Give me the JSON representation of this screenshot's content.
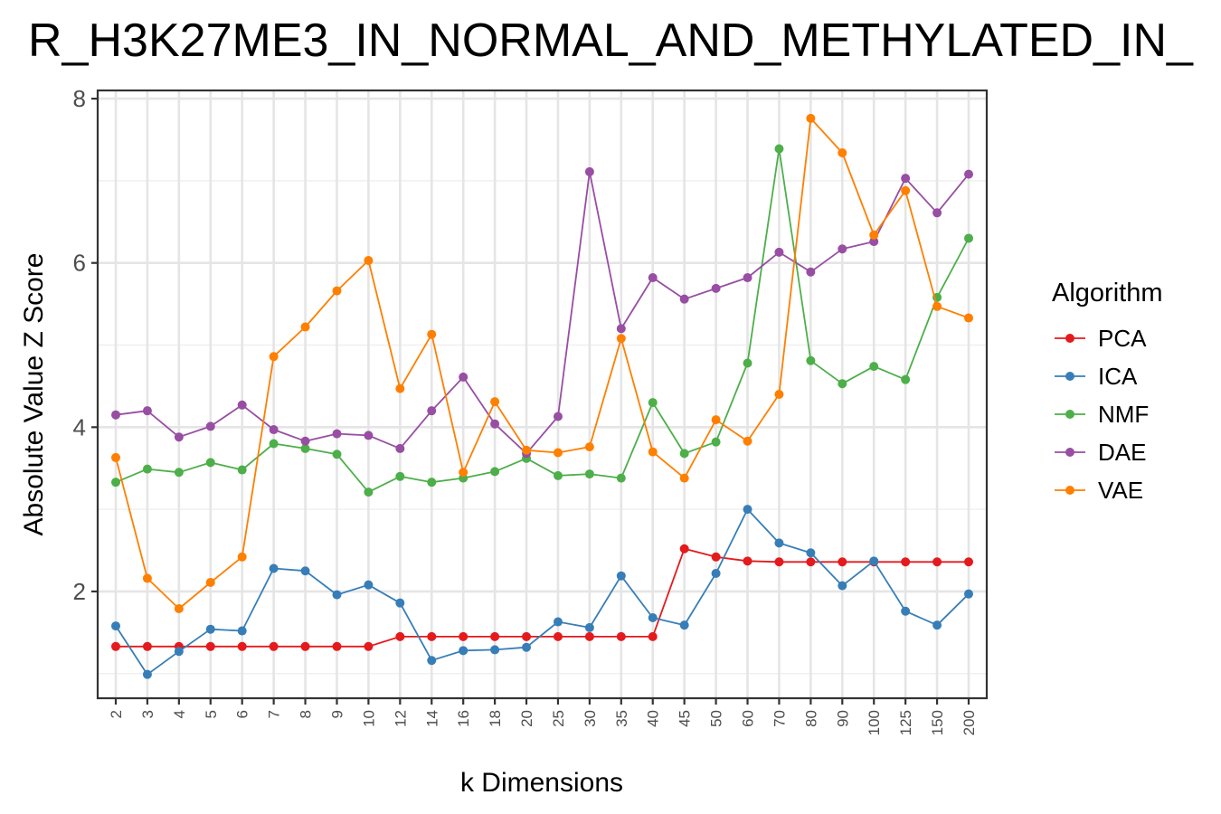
{
  "chart_data": {
    "type": "line",
    "title": "R_H3K27ME3_IN_NORMAL_AND_METHYLATED_IN_",
    "xlabel": "k Dimensions",
    "ylabel": "Absolute Value Z Score",
    "categories": [
      "2",
      "3",
      "4",
      "5",
      "6",
      "7",
      "8",
      "9",
      "10",
      "12",
      "14",
      "16",
      "18",
      "20",
      "25",
      "30",
      "35",
      "40",
      "45",
      "50",
      "60",
      "70",
      "80",
      "90",
      "100",
      "125",
      "150",
      "200"
    ],
    "ylim": [
      0.7,
      8.1
    ],
    "yticks": [
      2,
      4,
      6,
      8
    ],
    "grid": true,
    "legend": {
      "title": "Algorithm",
      "position": "right"
    },
    "series": [
      {
        "name": "PCA",
        "color": "#E41A1C",
        "values": [
          1.33,
          1.33,
          1.33,
          1.33,
          1.33,
          1.33,
          1.33,
          1.33,
          1.33,
          1.45,
          1.45,
          1.45,
          1.45,
          1.45,
          1.45,
          1.45,
          1.45,
          1.45,
          2.52,
          2.42,
          2.37,
          2.36,
          2.36,
          2.36,
          2.36,
          2.36,
          2.36,
          2.36
        ]
      },
      {
        "name": "ICA",
        "color": "#377EB8",
        "values": [
          1.58,
          0.99,
          1.27,
          1.54,
          1.52,
          2.28,
          2.25,
          1.96,
          2.08,
          1.86,
          1.16,
          1.28,
          1.29,
          1.32,
          1.63,
          1.56,
          2.19,
          1.68,
          1.59,
          2.22,
          3.0,
          2.59,
          2.47,
          2.07,
          2.37,
          1.76,
          1.59,
          1.97
        ]
      },
      {
        "name": "NMF",
        "color": "#4DAF4A",
        "values": [
          3.33,
          3.49,
          3.45,
          3.57,
          3.48,
          3.8,
          3.74,
          3.67,
          3.21,
          3.4,
          3.33,
          3.38,
          3.46,
          3.62,
          3.41,
          3.43,
          3.38,
          4.3,
          3.68,
          3.82,
          4.78,
          7.39,
          4.81,
          4.53,
          4.74,
          4.58,
          5.58,
          6.3
        ]
      },
      {
        "name": "DAE",
        "color": "#984EA3",
        "values": [
          4.15,
          4.2,
          3.88,
          4.01,
          4.27,
          3.97,
          3.83,
          3.92,
          3.9,
          3.74,
          4.2,
          4.61,
          4.04,
          3.68,
          4.13,
          7.11,
          5.2,
          5.82,
          5.56,
          5.69,
          5.82,
          6.13,
          5.89,
          6.17,
          6.26,
          7.03,
          6.61,
          7.08
        ]
      },
      {
        "name": "VAE",
        "color": "#FF7F00",
        "values": [
          3.63,
          2.16,
          1.79,
          2.11,
          2.42,
          4.86,
          5.22,
          5.66,
          6.03,
          4.47,
          5.13,
          3.45,
          4.31,
          3.72,
          3.69,
          3.76,
          5.08,
          3.7,
          3.38,
          4.09,
          3.83,
          4.4,
          7.76,
          7.34,
          6.34,
          6.88,
          5.47,
          5.33
        ]
      }
    ]
  }
}
